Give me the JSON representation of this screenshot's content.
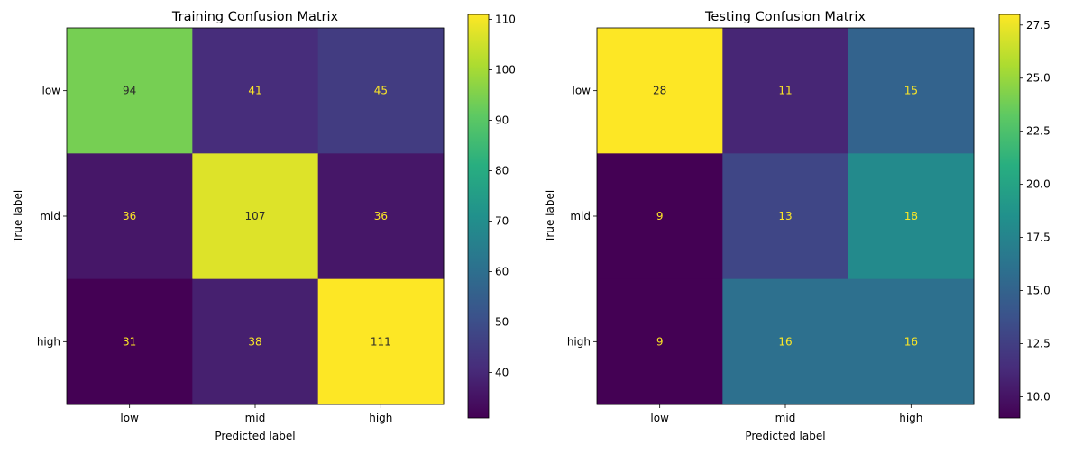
{
  "chart_data": [
    {
      "type": "heatmap",
      "title": "Training Confusion Matrix",
      "xlabel": "Predicted label",
      "ylabel": "True label",
      "x_categories": [
        "low",
        "mid",
        "high"
      ],
      "y_categories": [
        "low",
        "mid",
        "high"
      ],
      "values": [
        [
          94,
          41,
          45
        ],
        [
          36,
          107,
          36
        ],
        [
          31,
          38,
          111
        ]
      ],
      "colormap": "viridis",
      "vmin": 31,
      "vmax": 111,
      "colorbar_ticks": [
        "40",
        "50",
        "60",
        "70",
        "80",
        "90",
        "100",
        "110"
      ],
      "grid": false
    },
    {
      "type": "heatmap",
      "title": "Testing Confusion Matrix",
      "xlabel": "Predicted label",
      "ylabel": "True label",
      "x_categories": [
        "low",
        "mid",
        "high"
      ],
      "y_categories": [
        "low",
        "mid",
        "high"
      ],
      "values": [
        [
          28,
          11,
          15
        ],
        [
          9,
          13,
          18
        ],
        [
          9,
          16,
          16
        ]
      ],
      "colormap": "viridis",
      "vmin": 9,
      "vmax": 28,
      "colorbar_ticks": [
        "10.0",
        "12.5",
        "15.0",
        "17.5",
        "20.0",
        "22.5",
        "25.0",
        "27.5"
      ],
      "grid": false
    }
  ]
}
